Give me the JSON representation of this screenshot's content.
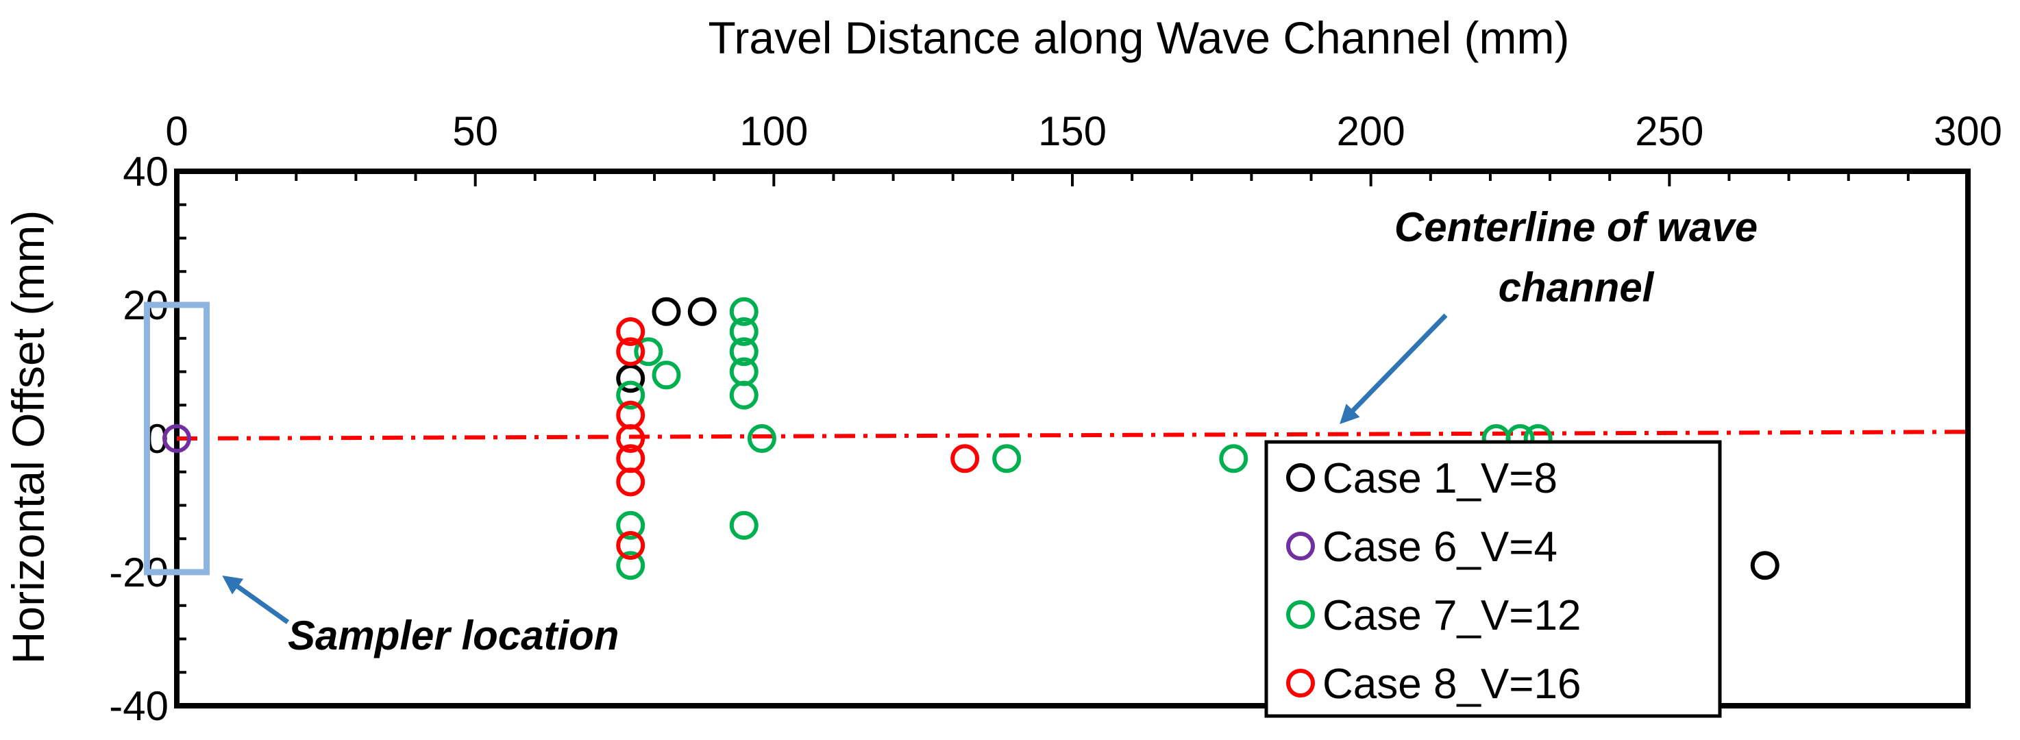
{
  "chart_data": {
    "type": "scatter",
    "xlabel": "Travel Distance along Wave Channel (mm)",
    "ylabel": "Horizontal Offset (mm)",
    "xlim": [
      0,
      300
    ],
    "ylim": [
      -40,
      40
    ],
    "x_ticks": [
      "0",
      "50",
      "100",
      "150",
      "200",
      "250",
      "300"
    ],
    "y_ticks": [
      "40",
      "20",
      "0",
      "-20",
      "-40"
    ],
    "x_axis_position": "top",
    "grid": false,
    "legend_position": "bottom-right",
    "series": [
      {
        "name": "Case 1_V=8",
        "color": "#000000",
        "points": [
          [
            82,
            19
          ],
          [
            88,
            19
          ],
          [
            76,
            9
          ],
          [
            266,
            -19
          ]
        ]
      },
      {
        "name": "Case 6_V=4",
        "color": "#7030A0",
        "points": [
          [
            0,
            0
          ]
        ]
      },
      {
        "name": "Case 7_V=12",
        "color": "#00B050",
        "points": [
          [
            95,
            19
          ],
          [
            95,
            16
          ],
          [
            95,
            13
          ],
          [
            95,
            10
          ],
          [
            95,
            6.5
          ],
          [
            98,
            0
          ],
          [
            95,
            -13
          ],
          [
            79,
            13
          ],
          [
            82,
            9.5
          ],
          [
            76,
            6.5
          ],
          [
            76,
            -13
          ],
          [
            76,
            -19
          ],
          [
            139,
            -3
          ],
          [
            177,
            -3
          ],
          [
            221,
            0
          ],
          [
            225,
            0
          ],
          [
            228,
            0
          ]
        ]
      },
      {
        "name": "Case 8_V=16",
        "color": "#FF0000",
        "points": [
          [
            76,
            16
          ],
          [
            76,
            13
          ],
          [
            76,
            3.5
          ],
          [
            76,
            0
          ],
          [
            76,
            -3
          ],
          [
            76,
            -6.5
          ],
          [
            76,
            -16
          ],
          [
            132,
            -3
          ]
        ]
      }
    ],
    "annotations": {
      "centerline_text_1": "Centerline of wave",
      "centerline_text_2": "channel",
      "sampler_text": "Sampler location"
    },
    "centerline": {
      "color": "#FF0000",
      "points": [
        [
          0,
          0
        ],
        [
          300,
          1
        ]
      ]
    },
    "sampler_box": {
      "x_range": [
        -5,
        5
      ],
      "y_range": [
        -20,
        20
      ],
      "color": "#8EB4E3"
    },
    "arrow_color": "#2E75B6"
  }
}
